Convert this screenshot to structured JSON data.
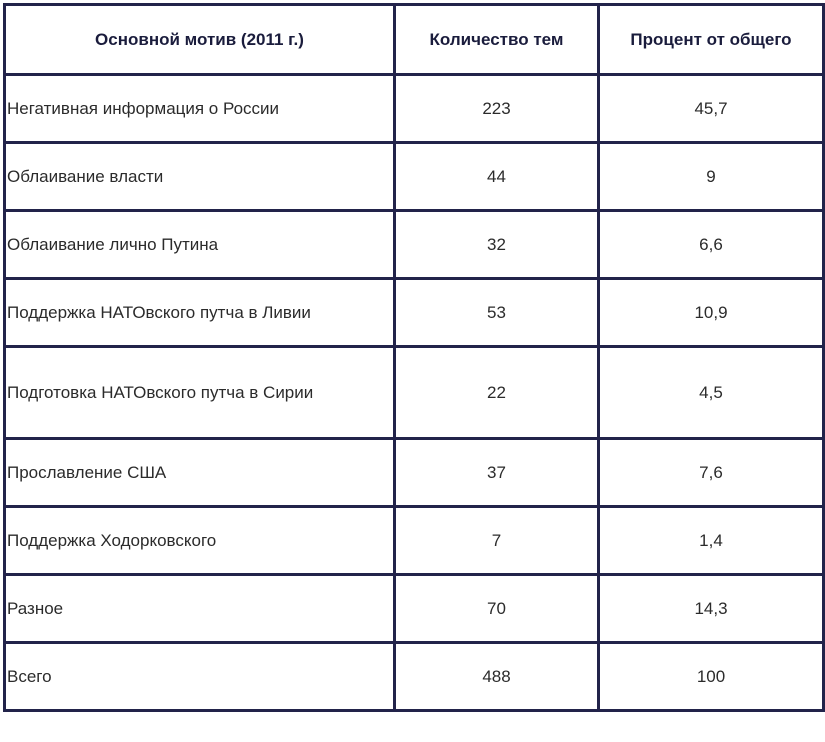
{
  "table": {
    "headers": [
      "Основной мотив (2011 г.)",
      "Количество тем",
      "Процент от общего"
    ],
    "rows": [
      {
        "motif": "Негативная информация о России",
        "count": "223",
        "percent": "45,7"
      },
      {
        "motif": "Облаивание власти",
        "count": "44",
        "percent": "9"
      },
      {
        "motif": "Облаивание лично Путина",
        "count": "32",
        "percent": "6,6"
      },
      {
        "motif": "Поддержка НАТОвского путча в Ливии",
        "count": "53",
        "percent": "10,9"
      },
      {
        "motif": "Подготовка НАТОвского путча в Сирии",
        "count": "22",
        "percent": "4,5"
      },
      {
        "motif": "Прославление США",
        "count": "37",
        "percent": "7,6"
      },
      {
        "motif": "Поддержка Ходорковского",
        "count": "7",
        "percent": "1,4"
      },
      {
        "motif": "Разное",
        "count": "70",
        "percent": "14,3"
      },
      {
        "motif": "Всего",
        "count": "488",
        "percent": "100"
      }
    ]
  }
}
